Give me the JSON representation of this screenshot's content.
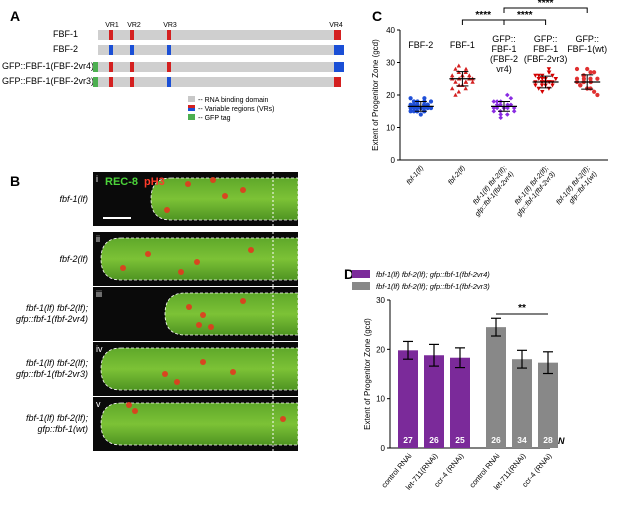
{
  "panelA": {
    "label": "A",
    "vr_labels": [
      "VR1",
      "VR2",
      "VR3",
      "VR4"
    ],
    "constructs": [
      "FBF-1",
      "FBF-2",
      "GFP::FBF-1(FBF-2vr4)",
      "GFP::FBF-1(FBF-2vr3)"
    ],
    "legend": [
      {
        "text": "-- RNA binding domain",
        "color": "#c8c8c8"
      },
      {
        "text": "-- Variable regions (VRs)",
        "color": "#d42020"
      },
      {
        "text": "-- GFP tag",
        "color": "#4caf50"
      }
    ],
    "colors": {
      "bar": "#cfcfcf",
      "vr_red": "#d42020",
      "vr_blue": "#1a4fd6",
      "gfp": "#4caf50"
    }
  },
  "panelB": {
    "label": "B",
    "stain_green": "REC-8",
    "stain_red": "pH3",
    "rows": [
      {
        "roman": "i",
        "genotype": [
          "fbf-1(lf)"
        ]
      },
      {
        "roman": "ii",
        "genotype": [
          "fbf-2(lf)"
        ]
      },
      {
        "roman": "iii",
        "genotype": [
          "fbf-1(lf) fbf-2(lf);",
          "gfp::fbf-1(fbf-2vr4)"
        ]
      },
      {
        "roman": "iv",
        "genotype": [
          "fbf-1(lf) fbf-2(lf);",
          "gfp::fbf-1(fbf-2vr3)"
        ]
      },
      {
        "roman": "v",
        "genotype": [
          "fbf-1(lf) fbf-2(lf);",
          "gfp::fbf-1(wt)"
        ]
      }
    ]
  },
  "panelC": {
    "label": "C",
    "chart_data": {
      "type": "scatter",
      "ylabel": "Extent of Progenitor Zone (gcd)",
      "ylim": [
        0,
        40
      ],
      "yticks": [
        0,
        10,
        20,
        30,
        40
      ],
      "categories": [
        "fbf-1(lf)",
        "fbf-2(lf)",
        "fbf-1(lf) fbf-2(lf); gfp::fbf-1(fbf-2vr4)",
        "fbf-1(lf) fbf-2(lf); gfp::fbf-1(fbf-2vr3)",
        "fbf-1(lf) fbf-2(lf); gfp::fbf-1(wt)"
      ],
      "group_titles": [
        [
          "FBF-2"
        ],
        [
          "FBF-1"
        ],
        [
          "GFP::",
          "FBF-1",
          "(FBF-2",
          "vr4)"
        ],
        [
          "GFP::",
          "FBF-1",
          "(FBF-2vr3)"
        ],
        [
          "GFP::",
          "FBF-1(wt)"
        ]
      ],
      "means": [
        16.5,
        25,
        16.5,
        24,
        24
      ],
      "sd": [
        1.5,
        2.2,
        1.5,
        1.8,
        2.2
      ],
      "colors": [
        "#1f4fd8",
        "#d42020",
        "#8a2be2",
        "#d40000",
        "#e03030"
      ],
      "series": [
        {
          "values": [
            16,
            17,
            15,
            18,
            16,
            17,
            15,
            16,
            18,
            17,
            16,
            15,
            17,
            14,
            16,
            19,
            17,
            16,
            15,
            18,
            16,
            17,
            16,
            15,
            18,
            17,
            16,
            19,
            15,
            17
          ]
        },
        {
          "values": [
            25,
            24,
            27,
            23,
            26,
            22,
            28,
            25,
            24,
            26,
            20,
            29,
            25,
            23,
            27,
            24,
            26,
            25,
            22,
            28,
            21,
            25,
            26,
            24
          ]
        },
        {
          "values": [
            16,
            17,
            15,
            18,
            16,
            14,
            17,
            19,
            16,
            15,
            18,
            17,
            13,
            16,
            20,
            16,
            17,
            15,
            18,
            16,
            17,
            14
          ]
        },
        {
          "values": [
            24,
            25,
            23,
            26,
            24,
            22,
            27,
            24,
            25,
            23,
            26,
            24,
            21,
            25,
            28,
            24,
            23,
            25,
            26,
            22,
            24,
            25,
            23,
            27,
            24,
            26
          ]
        },
        {
          "values": [
            24,
            23,
            26,
            25,
            22,
            27,
            24,
            21,
            25,
            28,
            23,
            24,
            26,
            22,
            25,
            24,
            27,
            20,
            25,
            23,
            26,
            24,
            28,
            22
          ]
        }
      ],
      "significance": [
        {
          "from": 1,
          "to": 2,
          "label": "****"
        },
        {
          "from": 2,
          "to": 3,
          "label": "****"
        },
        {
          "from": 2,
          "to": 4,
          "label": "****"
        }
      ]
    }
  },
  "panelD": {
    "label": "D",
    "chart_data": {
      "type": "bar",
      "ylabel": "Extent of Progenitor Zone (gcd)",
      "ylim": [
        0,
        30
      ],
      "yticks": [
        0,
        10,
        20,
        30
      ],
      "categories": [
        "control RNAi",
        "let-711(RNAi)",
        "ccr-4 (RNAi)",
        "control RNAi",
        "let-711(RNAi)",
        "ccr-4 (RNAi)"
      ],
      "values": [
        19.8,
        18.8,
        18.3,
        24.5,
        18.0,
        17.3
      ],
      "errors": [
        1.8,
        2.2,
        2.0,
        1.8,
        1.8,
        2.2
      ],
      "n": [
        "27",
        "26",
        "25",
        "26",
        "34",
        "28"
      ],
      "n_label": "N",
      "bar_colors": [
        "#7b2a9a",
        "#7b2a9a",
        "#7b2a9a",
        "#888888",
        "#888888",
        "#888888"
      ],
      "legend": [
        {
          "name": "fbf-1(lf) fbf-2(lf); gfp::fbf-1(fbf-2vr4)",
          "color": "#7b2a9a"
        },
        {
          "name": "fbf-1(lf) fbf-2(lf); gfp::fbf-1(fbf-2vr3)",
          "color": "#888888"
        }
      ],
      "significance": [
        {
          "from": 3,
          "to": 5,
          "label": "**"
        }
      ]
    }
  }
}
